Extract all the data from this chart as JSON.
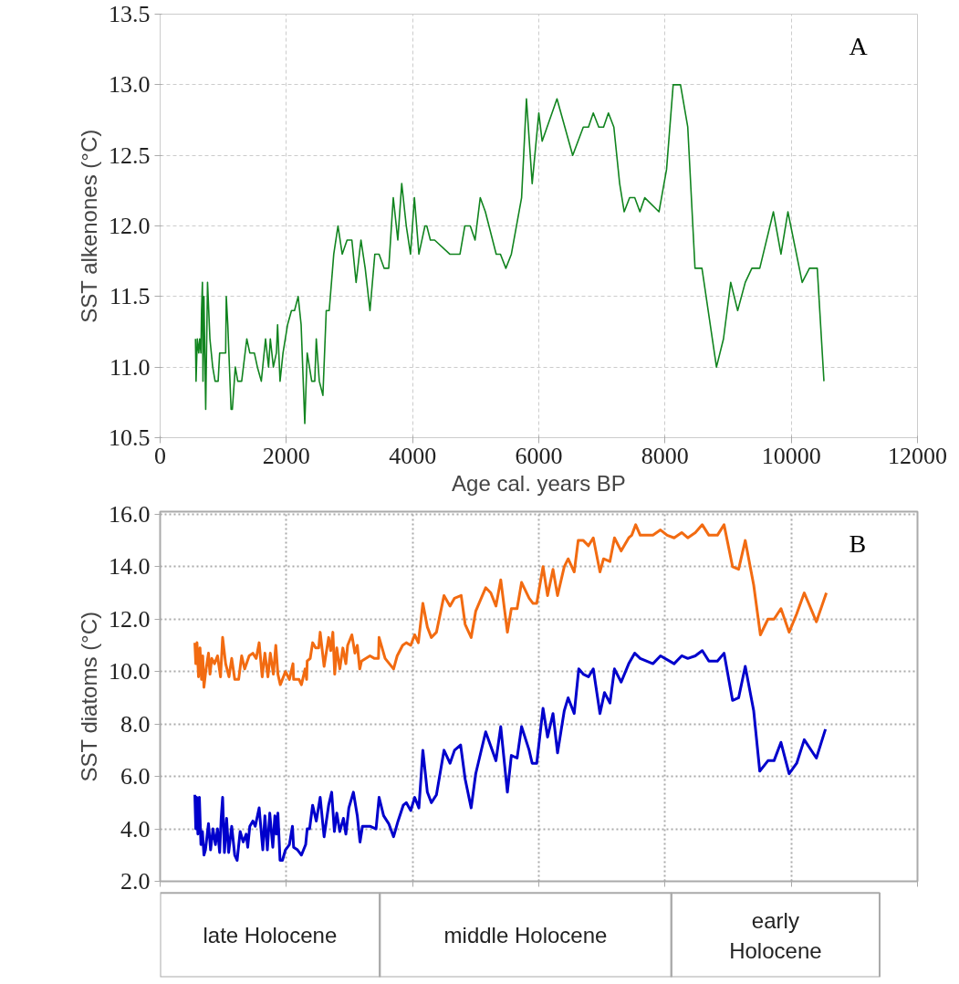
{
  "chart_data": [
    {
      "type": "line",
      "xlabel": "Age cal. years BP",
      "ylabel": "SST alkenones (°C)",
      "annotations": [
        "A"
      ],
      "xlim": [
        0,
        12000
      ],
      "ylim": [
        10.5,
        13.5
      ],
      "xticks": [
        0,
        2000,
        4000,
        6000,
        8000,
        10000,
        12000
      ],
      "yticks": [
        10.5,
        {
          "value": 11,
          "label": "11.0"
        },
        11.5,
        {
          "value": 12,
          "label": "12.0"
        },
        12.5,
        {
          "value": 13,
          "label": "13.0"
        },
        13.5
      ],
      "grid": true,
      "line_style": "solid",
      "series": [
        {
          "color": "#11841f",
          "x": [
            560,
            569,
            589,
            612,
            627,
            646,
            656,
            670,
            679,
            694,
            722,
            751,
            789,
            833,
            871,
            919,
            943,
            1038,
            1048,
            1072,
            1124,
            1144,
            1191,
            1230,
            1292,
            1373,
            1421,
            1493,
            1541,
            1603,
            1670,
            1718,
            1746,
            1794,
            1842,
            1861,
            1900,
            1947,
            2019,
            2081,
            2129,
            2187,
            2234,
            2292,
            2330,
            2402,
            2450,
            2474,
            2522,
            2579,
            2632,
            2679,
            2751,
            2818,
            2885,
            2962,
            3038,
            3105,
            3182,
            3249,
            3325,
            3402,
            3469,
            3550,
            3622,
            3694,
            3766,
            3828,
            3900,
            3967,
            4029,
            4100,
            4196,
            4225,
            4282,
            4349,
            4589,
            4751,
            4828,
            4914,
            4990,
            5072,
            5153,
            5325,
            5392,
            5478,
            5565,
            5727,
            5804,
            5895,
            6000,
            6053,
            6288,
            6537,
            6705,
            6787,
            6863,
            6950,
            7026,
            7103,
            7189,
            7281,
            7353,
            7439,
            7520,
            7602,
            7679,
            7904,
            8024,
            8129,
            8245,
            8360,
            8475,
            8585,
            8815,
            8926,
            9041,
            9151,
            9271,
            9376,
            9501,
            9717,
            9837,
            9947,
            10173,
            10288,
            10412,
            10518
          ],
          "values": [
            11.2,
            10.9,
            11.2,
            11.1,
            11.2,
            11.1,
            11.4,
            11.6,
            10.9,
            11.5,
            10.7,
            11.6,
            11.2,
            11.0,
            10.9,
            10.9,
            11.1,
            11.1,
            11.5,
            11.3,
            10.7,
            10.7,
            11.0,
            10.9,
            10.9,
            11.2,
            11.1,
            11.1,
            11.0,
            10.9,
            11.2,
            11.0,
            11.2,
            11.0,
            11.1,
            11.3,
            10.9,
            11.1,
            11.3,
            11.4,
            11.4,
            11.5,
            11.3,
            10.6,
            11.1,
            10.9,
            10.9,
            11.2,
            10.9,
            10.8,
            11.4,
            11.4,
            11.8,
            12.0,
            11.8,
            11.9,
            11.9,
            11.6,
            11.9,
            11.7,
            11.4,
            11.8,
            11.8,
            11.7,
            11.7,
            12.2,
            11.9,
            12.3,
            12.0,
            11.8,
            12.2,
            11.8,
            12.0,
            12.0,
            11.9,
            11.9,
            11.8,
            11.8,
            12.0,
            12.0,
            11.9,
            12.2,
            12.1,
            11.8,
            11.8,
            11.7,
            11.8,
            12.2,
            12.9,
            12.3,
            12.8,
            12.6,
            12.9,
            12.5,
            12.7,
            12.7,
            12.8,
            12.7,
            12.7,
            12.8,
            12.7,
            12.3,
            12.1,
            12.2,
            12.2,
            12.1,
            12.2,
            12.1,
            12.4,
            13.0,
            13.0,
            12.7,
            11.7,
            11.7,
            11.0,
            11.2,
            11.6,
            11.4,
            11.6,
            11.7,
            11.7,
            12.1,
            11.8,
            12.1,
            11.6,
            11.7,
            11.7,
            10.9
          ]
        }
      ]
    },
    {
      "type": "line",
      "ylabel": "SST diatoms (°C)",
      "annotations": [
        "B",
        "late Holocene",
        "middle Holocene",
        "early Holocene"
      ],
      "xlim": [
        0,
        12000
      ],
      "ylim": [
        2.0,
        16.1
      ],
      "xticks": [
        {
          "value": 0,
          "label": null
        },
        {
          "value": 2000,
          "label": null
        },
        {
          "value": 4000,
          "label": null
        },
        {
          "value": 6000,
          "label": null
        },
        {
          "value": 8000,
          "label": null
        },
        {
          "value": 10000,
          "label": null
        },
        {
          "value": 12000,
          "label": null
        }
      ],
      "yticks": [
        {
          "value": 2,
          "label": "2.0"
        },
        {
          "value": 4,
          "label": "4.0"
        },
        {
          "value": 6,
          "label": "6.0"
        },
        {
          "value": 8,
          "label": "8.0"
        },
        {
          "value": 10,
          "label": "10.0"
        },
        {
          "value": 12,
          "label": "12.0"
        },
        {
          "value": 14,
          "label": "14.0"
        },
        {
          "value": 16,
          "label": "16.0"
        }
      ],
      "grid": true,
      "line_style": "solid",
      "tick_labels": "y",
      "series": [
        {
          "color": "#f26b11",
          "x": [
            550,
            565,
            584,
            608,
            632,
            656,
            675,
            694,
            722,
            766,
            790,
            818,
            861,
            909,
            957,
            990,
            1038,
            1091,
            1134,
            1182,
            1244,
            1292,
            1340,
            1411,
            1469,
            1522,
            1569,
            1617,
            1660,
            1708,
            1746,
            1794,
            1833,
            1866,
            1904,
            1986,
            2048,
            2105,
            2115,
            2201,
            2239,
            2297,
            2321,
            2330,
            2378,
            2416,
            2464,
            2512,
            2536,
            2598,
            2670,
            2703,
            2737,
            2766,
            2799,
            2847,
            2895,
            2943,
            2971,
            3038,
            3086,
            3124,
            3163,
            3191,
            3325,
            3397,
            3459,
            3469,
            3565,
            3699,
            3756,
            3842,
            3900,
            3971,
            4033,
            4091,
            4163,
            4234,
            4297,
            4378,
            4498,
            4593,
            4665,
            4770,
            4833,
            4928,
            5000,
            5158,
            5239,
            5321,
            5397,
            5502,
            5565,
            5656,
            5727,
            5847,
            5909,
            5967,
            6067,
            6139,
            6225,
            6297,
            6403,
            6465,
            6561,
            6624,
            6705,
            6787,
            6863,
            6969,
            7026,
            7127,
            7199,
            7305,
            7425,
            7472,
            7535,
            7607,
            7808,
            7928,
            8034,
            8144,
            8264,
            8360,
            8480,
            8590,
            8695,
            8830,
            8935,
            9070,
            9166,
            9271,
            9405,
            9511,
            9631,
            9727,
            9837,
            9966,
            10086,
            10206,
            10398,
            10556
          ],
          "values": [
            11.1,
            10.3,
            11.1,
            9.8,
            10.9,
            9.7,
            10.6,
            9.4,
            10.0,
            10.7,
            9.9,
            10.5,
            10.3,
            10.6,
            9.8,
            11.3,
            10.3,
            9.8,
            10.5,
            9.7,
            9.7,
            10.6,
            10.1,
            10.6,
            10.7,
            10.5,
            11.1,
            9.8,
            10.7,
            9.8,
            10.7,
            9.9,
            11.0,
            9.9,
            9.5,
            10.0,
            9.7,
            10.3,
            9.7,
            9.7,
            9.5,
            10.1,
            9.7,
            10.4,
            10.5,
            11.1,
            10.9,
            10.9,
            11.5,
            10.2,
            11.3,
            10.8,
            11.5,
            9.9,
            10.9,
            10.1,
            10.9,
            10.3,
            11.0,
            11.4,
            10.7,
            11.0,
            10.1,
            10.4,
            10.6,
            10.5,
            10.5,
            11.3,
            10.5,
            10.1,
            10.6,
            11.0,
            11.1,
            11.0,
            11.4,
            11.1,
            12.6,
            11.7,
            11.3,
            11.5,
            12.9,
            12.5,
            12.8,
            12.9,
            11.8,
            11.3,
            12.3,
            13.2,
            13.0,
            12.5,
            13.5,
            11.5,
            12.4,
            12.4,
            13.4,
            12.8,
            12.6,
            12.6,
            14.0,
            12.9,
            13.9,
            12.9,
            14.0,
            14.3,
            13.8,
            15.0,
            15.0,
            14.8,
            15.1,
            13.8,
            14.3,
            14.2,
            15.1,
            14.6,
            15.1,
            15.2,
            15.6,
            15.2,
            15.2,
            15.4,
            15.2,
            15.1,
            15.3,
            15.1,
            15.3,
            15.6,
            15.2,
            15.2,
            15.6,
            14.0,
            13.9,
            15.0,
            13.3,
            11.4,
            12.0,
            12.0,
            12.4,
            11.5,
            12.2,
            13.0,
            11.9,
            13.0
          ]
        },
        {
          "color": "#0000cc",
          "x": [
            550,
            565,
            579,
            598,
            622,
            646,
            670,
            694,
            718,
            766,
            799,
            837,
            876,
            909,
            943,
            967,
            990,
            1019,
            1053,
            1086,
            1134,
            1182,
            1220,
            1268,
            1316,
            1364,
            1388,
            1421,
            1469,
            1507,
            1569,
            1627,
            1660,
            1699,
            1737,
            1785,
            1818,
            1842,
            1866,
            1900,
            1938,
            1986,
            2048,
            2096,
            2115,
            2177,
            2239,
            2306,
            2330,
            2368,
            2416,
            2474,
            2536,
            2598,
            2670,
            2718,
            2761,
            2799,
            2847,
            2904,
            2943,
            2990,
            3062,
            3124,
            3167,
            3206,
            3325,
            3421,
            3469,
            3541,
            3622,
            3699,
            3770,
            3852,
            3900,
            3971,
            4033,
            4100,
            4163,
            4234,
            4297,
            4378,
            4498,
            4593,
            4665,
            4761,
            4833,
            4928,
            5000,
            5158,
            5321,
            5397,
            5502,
            5565,
            5656,
            5727,
            5847,
            5895,
            5967,
            6067,
            6139,
            6225,
            6297,
            6403,
            6465,
            6561,
            6633,
            6705,
            6787,
            6863,
            6969,
            7041,
            7127,
            7199,
            7305,
            7425,
            7520,
            7607,
            7808,
            7928,
            8144,
            8264,
            8360,
            8480,
            8590,
            8695,
            8830,
            8935,
            9070,
            9166,
            9271,
            9405,
            9501,
            9631,
            9727,
            9837,
            9966,
            10086,
            10206,
            10398,
            10542
          ],
          "values": [
            5.3,
            4.0,
            5.2,
            3.8,
            5.2,
            3.4,
            3.9,
            3.0,
            3.2,
            4.2,
            3.2,
            4.0,
            3.4,
            4.0,
            3.1,
            4.4,
            5.2,
            3.1,
            4.4,
            3.1,
            4.1,
            3.0,
            2.8,
            3.9,
            3.5,
            3.8,
            3.3,
            4.1,
            4.3,
            4.1,
            4.8,
            3.2,
            4.5,
            3.2,
            4.6,
            3.3,
            4.5,
            3.8,
            4.6,
            2.8,
            2.8,
            3.2,
            3.4,
            4.1,
            3.3,
            3.2,
            3.0,
            3.4,
            4.0,
            4.0,
            4.9,
            4.3,
            5.2,
            3.7,
            4.9,
            5.4,
            3.9,
            4.6,
            3.9,
            4.4,
            3.8,
            4.8,
            5.4,
            4.5,
            3.5,
            4.1,
            4.1,
            4.0,
            5.2,
            4.5,
            4.2,
            3.7,
            4.3,
            4.9,
            5.0,
            4.7,
            5.2,
            4.8,
            7.0,
            5.4,
            5.0,
            5.3,
            7.0,
            6.5,
            7.0,
            7.2,
            5.9,
            4.8,
            6.1,
            7.7,
            6.6,
            7.9,
            5.4,
            6.8,
            6.7,
            7.9,
            7.0,
            6.5,
            6.5,
            8.6,
            7.5,
            8.4,
            6.9,
            8.5,
            9.0,
            8.4,
            10.1,
            9.9,
            9.8,
            10.1,
            8.4,
            9.2,
            8.8,
            10.1,
            9.6,
            10.3,
            10.7,
            10.5,
            10.3,
            10.6,
            10.3,
            10.6,
            10.5,
            10.6,
            10.8,
            10.4,
            10.4,
            10.7,
            8.9,
            9.0,
            10.2,
            8.5,
            6.2,
            6.6,
            6.6,
            7.3,
            6.1,
            6.5,
            7.4,
            6.7,
            7.8
          ]
        }
      ]
    }
  ]
}
